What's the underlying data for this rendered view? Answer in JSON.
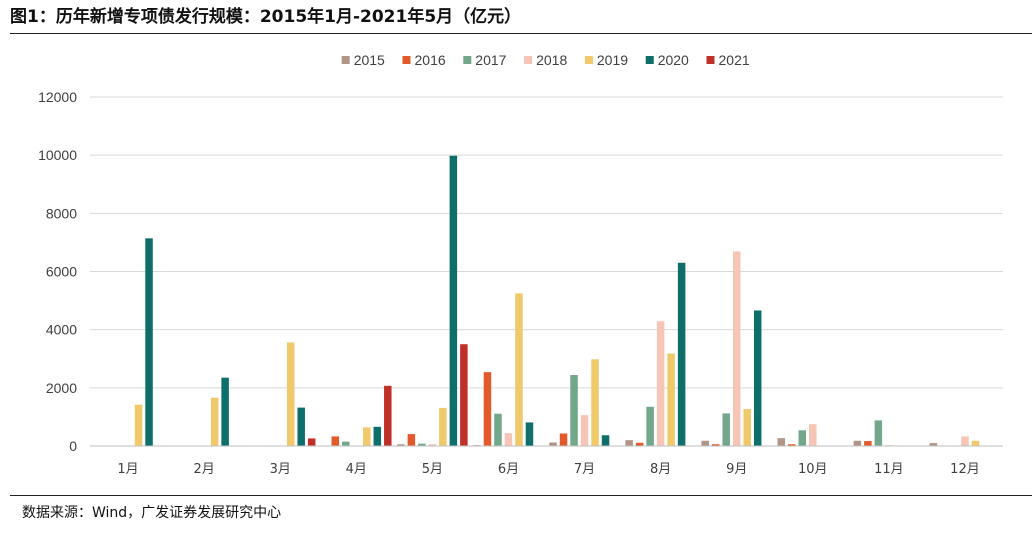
{
  "figure": {
    "title": "图1：历年新增专项债发行规模：2015年1月-2021年5月（亿元）",
    "source": "数据来源：Wind，广发证券发展研究中心"
  },
  "chart_data": {
    "type": "bar",
    "categories": [
      "1月",
      "2月",
      "3月",
      "4月",
      "5月",
      "6月",
      "7月",
      "8月",
      "9月",
      "10月",
      "11月",
      "12月"
    ],
    "ylim": [
      0,
      12000
    ],
    "yticks": [
      0,
      2000,
      4000,
      6000,
      8000,
      10000,
      12000
    ],
    "grid": true,
    "legend_position": "top",
    "series": [
      {
        "name": "2015",
        "color": "#b09485",
        "values": [
          0,
          0,
          0,
          0,
          60,
          30,
          120,
          200,
          180,
          270,
          180,
          100
        ]
      },
      {
        "name": "2016",
        "color": "#e2592a",
        "values": [
          0,
          0,
          0,
          330,
          410,
          2540,
          430,
          110,
          60,
          60,
          170,
          0
        ]
      },
      {
        "name": "2017",
        "color": "#73a78b",
        "values": [
          0,
          0,
          0,
          150,
          80,
          1110,
          2440,
          1350,
          1120,
          540,
          880,
          0
        ]
      },
      {
        "name": "2018",
        "color": "#f6c5b5",
        "values": [
          0,
          0,
          0,
          0,
          60,
          440,
          1060,
          4290,
          6690,
          750,
          30,
          330
        ]
      },
      {
        "name": "2019",
        "color": "#f0c96b",
        "values": [
          1420,
          1660,
          3560,
          640,
          1310,
          5250,
          2980,
          3180,
          1270,
          0,
          0,
          180
        ]
      },
      {
        "name": "2020",
        "color": "#0e6f6a",
        "values": [
          7140,
          2350,
          1320,
          660,
          9980,
          810,
          370,
          6300,
          4660,
          0,
          0,
          0
        ]
      },
      {
        "name": "2021",
        "color": "#be3028",
        "values": [
          0,
          0,
          260,
          2070,
          3500,
          0,
          0,
          0,
          0,
          0,
          0,
          0
        ]
      }
    ]
  }
}
